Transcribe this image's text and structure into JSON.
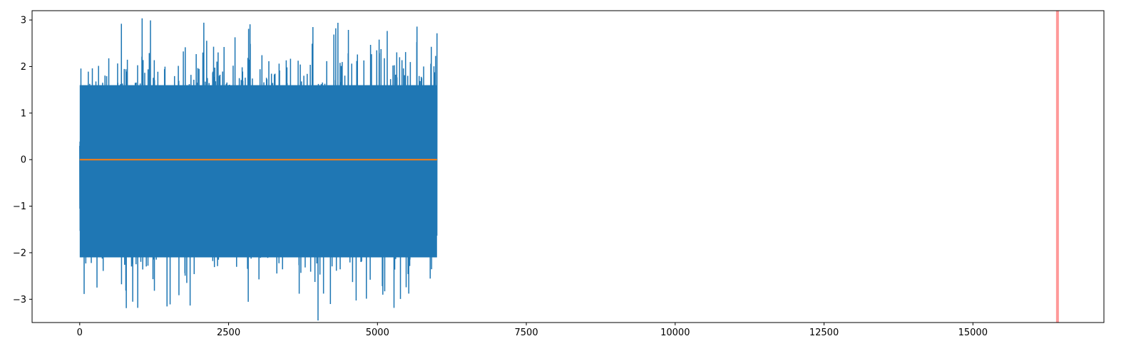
{
  "chart_data": {
    "type": "line",
    "title": "",
    "xlabel": "",
    "ylabel": "",
    "xlim": [
      -800,
      17200
    ],
    "ylim": [
      -3.5,
      3.2
    ],
    "x_ticks": [
      0,
      2500,
      5000,
      7500,
      10000,
      12500,
      15000
    ],
    "x_tick_labels": [
      "0",
      "2500",
      "5000",
      "7500",
      "10000",
      "12500",
      "15000"
    ],
    "y_ticks": [
      -3,
      -2,
      -1,
      0,
      1,
      2,
      3
    ],
    "y_tick_labels": [
      "−3",
      "−2",
      "−1",
      "0",
      "1",
      "2",
      "3"
    ],
    "grid": false,
    "series": [
      {
        "style": "dense-noise",
        "color": "#1f77b4",
        "x_range": [
          0,
          6000
        ],
        "mean": 0,
        "typical_range": [
          -2.7,
          2.2
        ],
        "peak_max": 2.92,
        "peak_min": -3.22
      },
      {
        "style": "line",
        "color": "#ff7f0e",
        "x": [
          0,
          6000
        ],
        "values": [
          0,
          0
        ]
      }
    ],
    "vlines": [
      {
        "x": 16420,
        "color": "#ff0000",
        "alpha": 0.4
      }
    ]
  }
}
